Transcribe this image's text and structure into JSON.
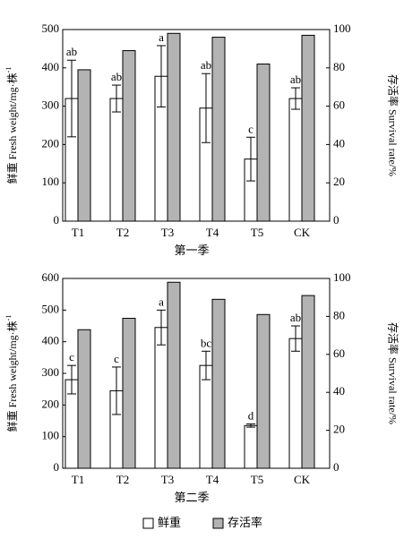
{
  "chart_data": [
    {
      "type": "bar",
      "categories": [
        "T1",
        "T2",
        "T3",
        "T4",
        "T5",
        "CK"
      ],
      "xlabel": "第一季",
      "ylabel": "鲜重 Fresh weight/mg·株",
      "ylabel_sup": "-1",
      "y2label": "存活率 Survival rate/%",
      "ylim": [
        0,
        500
      ],
      "yticks": [
        0,
        100,
        200,
        300,
        400,
        500
      ],
      "y2lim": [
        0,
        100
      ],
      "y2ticks": [
        0,
        20,
        40,
        60,
        80,
        100
      ],
      "series": [
        {
          "color": "#ffffff",
          "values": [
            320,
            320,
            378,
            295,
            162,
            320
          ],
          "errors": [
            100,
            35,
            80,
            90,
            57,
            28
          ],
          "letters": [
            "ab",
            "ab",
            "a",
            "ab",
            "c",
            "ab"
          ]
        },
        {
          "color": "#b3b3b3",
          "axis": "y2",
          "values": [
            79,
            89,
            98,
            96,
            82,
            97
          ]
        }
      ]
    },
    {
      "type": "bar",
      "categories": [
        "T1",
        "T2",
        "T3",
        "T4",
        "T5",
        "CK"
      ],
      "xlabel": "第二季",
      "ylabel": "鲜重 Fresh weight/mg·株",
      "ylabel_sup": "-1",
      "y2label": "存活率 Survival rate/%",
      "ylim": [
        0,
        600
      ],
      "yticks": [
        0,
        100,
        200,
        300,
        400,
        500,
        600
      ],
      "y2lim": [
        0,
        100
      ],
      "y2ticks": [
        0,
        20,
        40,
        60,
        80,
        100
      ],
      "series": [
        {
          "name": "鲜重",
          "color": "#ffffff",
          "values": [
            280,
            245,
            445,
            325,
            135,
            410
          ],
          "errors": [
            45,
            75,
            55,
            45,
            5,
            40
          ],
          "letters": [
            "c",
            "c",
            "a",
            "bc",
            "d",
            "ab"
          ]
        },
        {
          "name": "存活率",
          "color": "#b3b3b3",
          "axis": "y2",
          "values": [
            73,
            79,
            98,
            89,
            81,
            91
          ]
        }
      ]
    }
  ]
}
